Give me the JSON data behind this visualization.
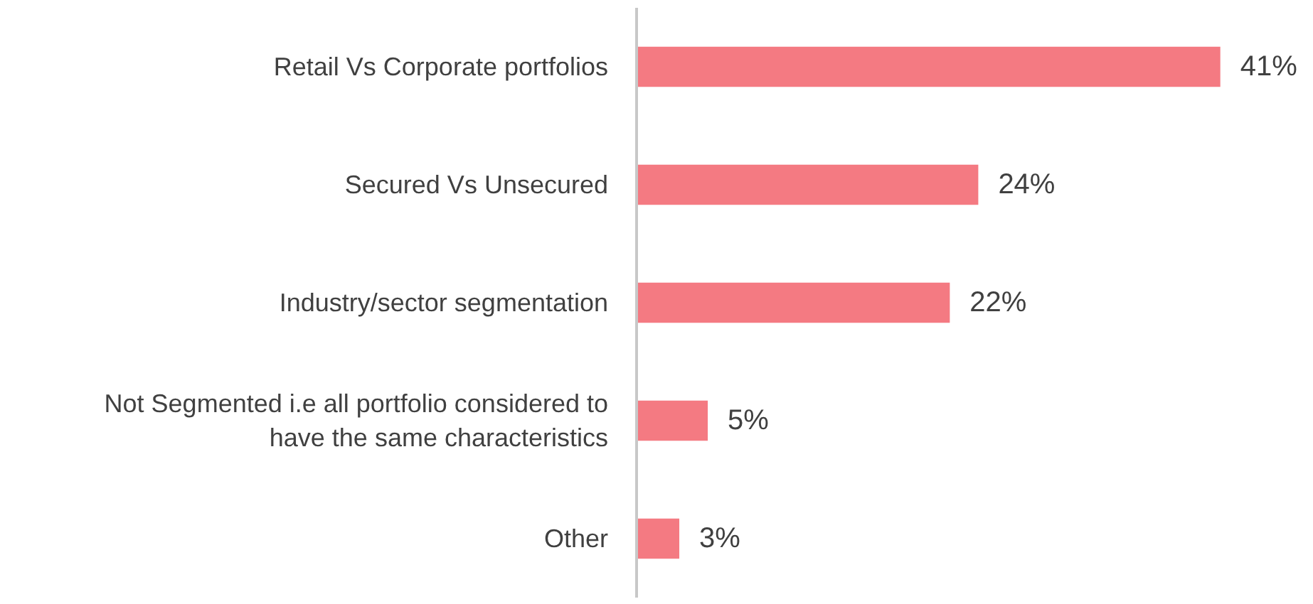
{
  "chart_data": {
    "type": "bar",
    "orientation": "horizontal",
    "categories": [
      "Retail Vs Corporate portfolios",
      "Secured Vs Unsecured",
      "Industry/sector segmentation",
      "Not Segmented i.e all portfolio considered to have the same characteristics",
      "Other"
    ],
    "values": [
      41,
      24,
      22,
      5,
      3
    ],
    "value_labels": [
      "41%",
      "24%",
      "22%",
      "5%",
      "3%"
    ],
    "color": "#f47a82",
    "grid": false
  }
}
